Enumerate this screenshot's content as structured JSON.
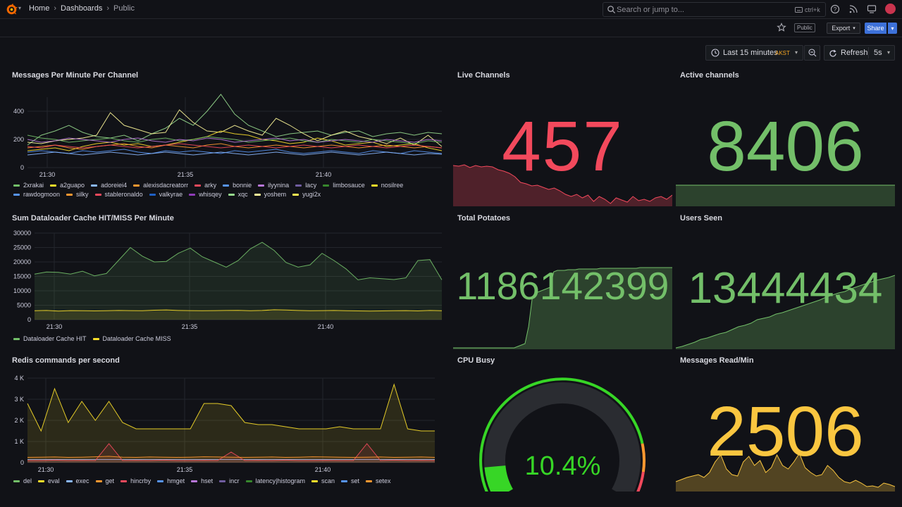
{
  "topbar": {
    "breadcrumb": [
      "Home",
      "Dashboards",
      "Public"
    ],
    "search_placeholder": "Search or jump to...",
    "search_shortcut": "ctrl+k"
  },
  "subbar": {
    "tag": "Public",
    "export_label": "Export",
    "share_label": "Share"
  },
  "controls": {
    "time_range": "Last 15 minutes",
    "timezone": "AKST",
    "refresh_label": "Refresh",
    "refresh_interval": "5s"
  },
  "panels": {
    "messages": {
      "title": "Messages Per Minute Per Channel",
      "legend": [
        {
          "name": "2xrakai",
          "color": "#73bf69"
        },
        {
          "name": "a2guapo",
          "color": "#fade2a"
        },
        {
          "name": "adoreiei4",
          "color": "#8ab8ff"
        },
        {
          "name": "alexisdacreatorr",
          "color": "#ff9830"
        },
        {
          "name": "arky",
          "color": "#f2495c"
        },
        {
          "name": "bonnie",
          "color": "#5794f2"
        },
        {
          "name": "ilyynina",
          "color": "#b877d9"
        },
        {
          "name": "lacy",
          "color": "#705da0"
        },
        {
          "name": "limbosauce",
          "color": "#37872d"
        },
        {
          "name": "nosilree",
          "color": "#fade2a"
        },
        {
          "name": "rawdogmoon",
          "color": "#5794f2"
        },
        {
          "name": "silky",
          "color": "#ff9830"
        },
        {
          "name": "stableronaldo",
          "color": "#f2495c"
        },
        {
          "name": "valkyrae",
          "color": "#1f60c4"
        },
        {
          "name": "whisqey",
          "color": "#8f3bb8"
        },
        {
          "name": "xqc",
          "color": "#96d98d"
        },
        {
          "name": "yoshem",
          "color": "#fff899"
        },
        {
          "name": "yugi2x",
          "color": "#ffee52"
        }
      ]
    },
    "live_channels": {
      "title": "Live Channels",
      "value": "457",
      "color": "#f2495c"
    },
    "active_channels": {
      "title": "Active channels",
      "value": "8406",
      "color": "#73bf69"
    },
    "dataloader": {
      "title": "Sum Dataloader Cache HIT/MISS Per Minute",
      "legend": [
        {
          "name": "Dataloader Cache HIT",
          "color": "#73bf69"
        },
        {
          "name": "Dataloader Cache MISS",
          "color": "#fade2a"
        }
      ]
    },
    "total_potatoes": {
      "title": "Total Potatoes",
      "value": "1186142399",
      "color": "#73bf69"
    },
    "users_seen": {
      "title": "Users Seen",
      "value": "13444434",
      "color": "#73bf69"
    },
    "redis": {
      "title": "Redis commands per second",
      "legend": [
        {
          "name": "del",
          "color": "#73bf69"
        },
        {
          "name": "eval",
          "color": "#fade2a"
        },
        {
          "name": "exec",
          "color": "#8ab8ff"
        },
        {
          "name": "get",
          "color": "#ff9830"
        },
        {
          "name": "hincrby",
          "color": "#f2495c"
        },
        {
          "name": "hmget",
          "color": "#5794f2"
        },
        {
          "name": "hset",
          "color": "#b877d9"
        },
        {
          "name": "incr",
          "color": "#705da0"
        },
        {
          "name": "latency|histogram",
          "color": "#37872d"
        },
        {
          "name": "scan",
          "color": "#fade2a"
        },
        {
          "name": "set",
          "color": "#5794f2"
        },
        {
          "name": "setex",
          "color": "#ff9830"
        }
      ]
    },
    "cpu": {
      "title": "CPU Busy",
      "value": "10.4%",
      "percent": 10.4,
      "color": "#37d626"
    },
    "messages_read": {
      "title": "Messages Read/Min",
      "value": "2506",
      "color": "#fac640"
    }
  },
  "chart_data": [
    {
      "type": "line",
      "title": "Messages Per Minute Per Channel",
      "x_ticks": [
        "21:30",
        "21:35",
        "21:40"
      ],
      "y_ticks": [
        "0",
        "200",
        "400"
      ],
      "ylim": [
        0,
        500
      ],
      "series": [
        {
          "name": "xqc",
          "values": [
            160,
            230,
            260,
            300,
            250,
            220,
            210,
            230,
            190,
            240,
            280,
            350,
            300,
            400,
            520,
            380,
            300,
            260,
            220,
            240,
            250,
            260,
            230,
            250,
            260,
            220,
            240,
            250,
            230,
            250,
            240
          ]
        },
        {
          "name": "yoshem",
          "values": [
            180,
            170,
            190,
            200,
            210,
            230,
            390,
            300,
            270,
            240,
            250,
            410,
            320,
            260,
            250,
            300,
            260,
            230,
            350,
            300,
            240,
            190,
            230,
            260,
            220,
            200,
            170,
            210,
            160,
            230,
            150
          ]
        },
        {
          "name": "a2guapo",
          "values": [
            120,
            130,
            140,
            120,
            150,
            170,
            180,
            160,
            170,
            150,
            160,
            180,
            200,
            220,
            260,
            240,
            230,
            200,
            190,
            170,
            180,
            210,
            190,
            160,
            170,
            180,
            150,
            160,
            170,
            140,
            120
          ]
        },
        {
          "name": "2xrakai",
          "values": [
            230,
            210,
            200,
            180,
            190,
            200,
            210,
            190,
            180,
            200,
            210,
            190,
            200,
            220,
            210,
            200,
            180,
            190,
            200,
            210,
            190,
            180,
            200,
            190,
            180,
            200,
            190,
            180,
            170,
            190,
            180
          ]
        },
        {
          "name": "silky",
          "values": [
            140,
            150,
            160,
            140,
            130,
            150,
            160,
            170,
            150,
            140,
            160,
            150,
            140,
            160,
            170,
            150,
            140,
            150,
            160,
            150,
            140,
            150,
            160,
            150,
            140,
            150,
            160,
            150,
            140,
            150,
            140
          ]
        },
        {
          "name": "bonnie",
          "values": [
            110,
            120,
            110,
            100,
            120,
            110,
            120,
            130,
            110,
            100,
            120,
            110,
            120,
            110,
            100,
            120,
            110,
            120,
            130,
            110,
            100,
            110,
            120,
            110,
            100,
            120,
            110,
            100,
            120,
            110,
            100
          ]
        },
        {
          "name": "ilyynina",
          "values": [
            200,
            180,
            190,
            210,
            200,
            190,
            180,
            200,
            210,
            190,
            180,
            200,
            190,
            210,
            200,
            180,
            190,
            200,
            210,
            190,
            200,
            180,
            190,
            200,
            190,
            180,
            200,
            190,
            180,
            200,
            190
          ]
        },
        {
          "name": "adoreiei4",
          "values": [
            90,
            100,
            110,
            100,
            90,
            100,
            110,
            100,
            90,
            100,
            110,
            100,
            90,
            100,
            110,
            100,
            90,
            100,
            110,
            100,
            90,
            100,
            110,
            100,
            90,
            100,
            110,
            100,
            90,
            100,
            95
          ]
        },
        {
          "name": "arky",
          "values": [
            150,
            140,
            160,
            150,
            140,
            150,
            160,
            150,
            140,
            150,
            160,
            170,
            160,
            150,
            140,
            150,
            160,
            150,
            140,
            150,
            160,
            150,
            140,
            150,
            160,
            150,
            140,
            150,
            160,
            150,
            140
          ]
        }
      ]
    },
    {
      "type": "area",
      "title": "Sum Dataloader Cache HIT/MISS Per Minute",
      "x_ticks": [
        "21:30",
        "21:35",
        "21:40"
      ],
      "y_ticks": [
        "0",
        "5000",
        "10000",
        "15000",
        "20000",
        "25000",
        "30000"
      ],
      "ylim": [
        0,
        30000
      ],
      "series": [
        {
          "name": "Dataloader Cache HIT",
          "values": [
            15800,
            16500,
            16400,
            15800,
            16800,
            15200,
            16000,
            20500,
            25000,
            22000,
            20000,
            20200,
            23000,
            24800,
            21800,
            20000,
            18200,
            20500,
            24500,
            26800,
            24000,
            19800,
            18200,
            19000,
            23000,
            20500,
            17600,
            13800,
            14500,
            14200,
            13900,
            14500,
            20500,
            20800,
            13800
          ]
        },
        {
          "name": "Dataloader Cache MISS",
          "values": [
            3100,
            3200,
            3000,
            3150,
            3100,
            3050,
            3100,
            3200,
            3150,
            3100,
            3300,
            3400,
            3200,
            3150,
            3100,
            3150,
            3200,
            3250,
            3100,
            3200,
            3450,
            3350,
            3200,
            3100,
            3150,
            3200,
            3100,
            3050,
            3000,
            3050,
            3100,
            3150,
            3050,
            3200,
            3100
          ]
        }
      ]
    },
    {
      "type": "area",
      "title": "Redis commands per second",
      "x_ticks": [
        "21:30",
        "21:35",
        "21:40"
      ],
      "y_ticks": [
        "0",
        "1 K",
        "2 K",
        "3 K",
        "4 K"
      ],
      "ylim": [
        0,
        4000
      ],
      "series": [
        {
          "name": "eval",
          "values": [
            2800,
            1500,
            3500,
            1900,
            2900,
            2000,
            2900,
            1900,
            1600,
            1600,
            1600,
            1600,
            1600,
            2800,
            2800,
            2700,
            1900,
            1800,
            1800,
            1700,
            1600,
            1600,
            1600,
            1700,
            1600,
            1600,
            1600,
            3700,
            1600,
            1500,
            1500
          ]
        },
        {
          "name": "exec",
          "values": [
            150,
            150,
            150,
            150,
            150,
            150,
            150,
            150,
            150,
            150,
            150,
            150,
            150,
            150,
            150,
            150,
            150,
            150,
            150,
            150,
            150,
            150,
            150,
            150,
            150,
            150,
            150,
            150,
            150,
            150,
            150
          ]
        },
        {
          "name": "hincrby",
          "values": [
            100,
            100,
            120,
            100,
            110,
            100,
            900,
            100,
            110,
            100,
            120,
            100,
            100,
            110,
            100,
            500,
            100,
            110,
            100,
            120,
            100,
            100,
            110,
            100,
            100,
            900,
            100,
            120,
            100,
            110,
            100
          ]
        },
        {
          "name": "get",
          "values": [
            250,
            260,
            270,
            250,
            260,
            280,
            300,
            260,
            250,
            270,
            260,
            250,
            260,
            280,
            270,
            260,
            250,
            260,
            270,
            250,
            260,
            280,
            270,
            260,
            250,
            260,
            270,
            250,
            260,
            270,
            250
          ]
        }
      ]
    }
  ]
}
